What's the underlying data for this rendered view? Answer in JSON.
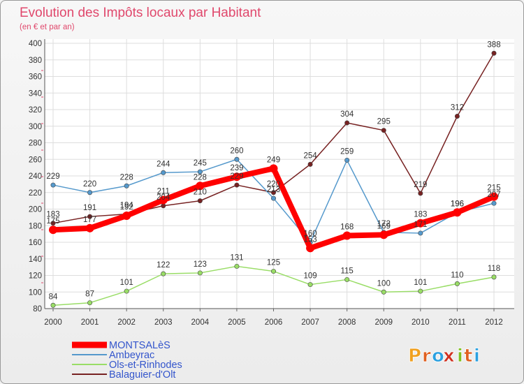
{
  "chart_data": {
    "type": "line",
    "title": "Evolution des Impôts locaux par Habitant",
    "subtitle": "(en € et par an)",
    "xlabel": "",
    "ylabel": "",
    "categories": [
      "2000",
      "2001",
      "2002",
      "2003",
      "2004",
      "2005",
      "2006",
      "2007",
      "2008",
      "2009",
      "2010",
      "2011",
      "2012"
    ],
    "ylim": [
      80,
      400
    ],
    "yticks": [
      "80",
      "100",
      "120",
      "140",
      "160",
      "180",
      "200",
      "220",
      "240",
      "260",
      "280",
      "300",
      "320",
      "340",
      "360",
      "380",
      "400"
    ],
    "grid": true,
    "legend_position": "bottom-left",
    "series": [
      {
        "name": "MONTSALèS",
        "color": "#ff0000",
        "emphasis": true,
        "values": [
          175,
          177,
          192,
          211,
          228,
          239,
          249,
          153,
          168,
          169,
          183,
          196,
          215
        ]
      },
      {
        "name": "Ambeyrac",
        "color": "#5599cc",
        "emphasis": false,
        "values": [
          229,
          220,
          228,
          244,
          245,
          260,
          213,
          160,
          259,
          172,
          171,
          196,
          207
        ]
      },
      {
        "name": "Ols-et-Rinhodes",
        "color": "#99dd66",
        "emphasis": false,
        "values": [
          84,
          87,
          101,
          122,
          123,
          131,
          125,
          109,
          115,
          100,
          101,
          110,
          118
        ]
      },
      {
        "name": "Balaguier-d'Olt",
        "color": "#772222",
        "emphasis": false,
        "values": [
          183,
          191,
          194,
          204,
          210,
          229,
          220,
          254,
          304,
          295,
          219,
          312,
          388
        ]
      }
    ],
    "data_labels": [
      [
        "175",
        "177",
        "192",
        "211",
        "228",
        "239",
        "249",
        "153",
        "168",
        "169",
        "183",
        "196",
        "215"
      ],
      [
        "229",
        "220",
        "228",
        "244",
        "245",
        "260",
        "213",
        "160",
        "259",
        "172",
        "171",
        "196",
        "207"
      ],
      [
        "84",
        "87",
        "101",
        "122",
        "123",
        "131",
        "125",
        "109",
        "115",
        "100",
        "101",
        "110",
        "118"
      ],
      [
        "183",
        "191",
        "194",
        "204",
        "210",
        "229",
        "220",
        "254",
        "304",
        "295",
        "219",
        "312",
        "388"
      ]
    ]
  },
  "logo": {
    "text": "Proxiti",
    "letters": [
      "P",
      "r",
      "o",
      "x",
      "i",
      "t",
      "i"
    ]
  }
}
